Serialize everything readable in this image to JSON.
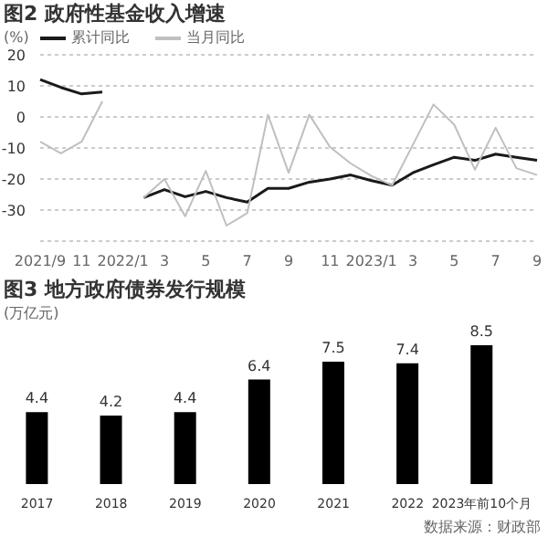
{
  "chart_data": [
    {
      "type": "line",
      "title": "图2  政府性基金收入增速",
      "ylabel": "(%)",
      "categories": [
        "2021/9",
        null,
        "11",
        null,
        "2022/1",
        null,
        "3",
        null,
        "5",
        null,
        "7",
        null,
        "9",
        null,
        "11",
        null,
        "2023/1",
        null,
        "3",
        null,
        "5",
        null,
        "7",
        null,
        "9"
      ],
      "series": [
        {
          "name": "累计同比",
          "color": "#1a1a1a",
          "values": [
            12,
            9.5,
            7.4,
            8,
            null,
            -26,
            -23.4,
            -25.7,
            -24,
            -26,
            -27.4,
            -23,
            -23,
            -21,
            -20,
            -18.7,
            -20.5,
            -22,
            -18,
            -15.4,
            -13,
            -14,
            -12,
            -13,
            -14
          ]
        },
        {
          "name": "当月同比",
          "color": "#bfbfbf",
          "values": [
            -8,
            -11.7,
            -8,
            5,
            null,
            -26,
            -20,
            -32,
            -17.4,
            -35,
            -31,
            0.7,
            -18,
            0.7,
            -9.7,
            -15,
            -19,
            -22,
            -9,
            4,
            -2.5,
            -17,
            -3.5,
            -16.5,
            -18.7
          ]
        }
      ],
      "ylim": [
        -40,
        20
      ],
      "yticks": [
        20,
        10,
        0,
        -10,
        -20,
        -30
      ],
      "grid": "y",
      "legend": "top left",
      "marker": "none"
    },
    {
      "type": "bar",
      "title": "图3 地方政府债券发行规模",
      "ylabel": "(万亿元)",
      "categories": [
        "2017",
        "2018",
        "2019",
        "2020",
        "2021",
        "2022",
        "2023年前10个月"
      ],
      "values": [
        4.4,
        4.2,
        4.4,
        6.4,
        7.5,
        7.4,
        8.5
      ],
      "color": "#000000",
      "data_labels": true,
      "annotations": [
        "数据来源：财政部"
      ]
    }
  ]
}
